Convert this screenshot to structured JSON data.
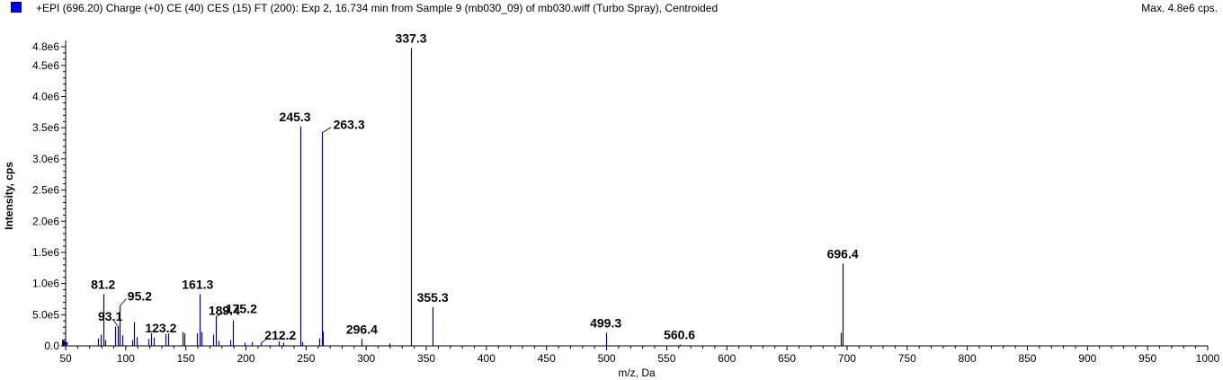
{
  "header": {
    "title": "+EPI (696.20) Charge (+0) CE (40) CES (15) FT (200): Exp 2, 16.734 min from Sample 9 (mb030_09) of mb030.wiff (Turbo Spray), Centroided",
    "max_label": "Max. 4.8e6 cps."
  },
  "colors": {
    "series": "#00008b",
    "swatch": "#0000ff",
    "axis": "#000000"
  },
  "chart_data": {
    "type": "bar",
    "title": "+EPI (696.20) Charge (+0) CE (40) CES (15) FT (200): Exp 2, 16.734 min from Sample 9 (mb030_09) of mb030.wiff (Turbo Spray), Centroided",
    "xlabel": "m/z, Da",
    "ylabel": "Intensity, cps",
    "xlim": [
      50,
      1000
    ],
    "ylim": [
      0,
      4800000.0
    ],
    "x_ticks": [
      50,
      100,
      150,
      200,
      250,
      300,
      350,
      400,
      450,
      500,
      550,
      600,
      650,
      700,
      750,
      800,
      850,
      900,
      950,
      1000
    ],
    "x_tick_labels": [
      "50",
      "100",
      "150",
      "200",
      "250",
      "300",
      "350",
      "400",
      "450",
      "500",
      "550",
      "600",
      "650",
      "700",
      "750",
      "800",
      "850",
      "900",
      "950",
      "1000"
    ],
    "y_ticks": [
      0,
      500000,
      1000000,
      1500000,
      2000000,
      2500000,
      3000000,
      3500000,
      4000000,
      4500000,
      4800000
    ],
    "y_tick_labels": [
      "0.0",
      "5.0e5",
      "1.0e6",
      "1.5e6",
      "2.0e6",
      "2.5e6",
      "3.0e6",
      "3.5e6",
      "4.0e6",
      "4.5e6",
      "4.8e6"
    ],
    "peaks": [
      {
        "mz": 51.0,
        "intensity": 60000
      },
      {
        "mz": 77.0,
        "intensity": 120000
      },
      {
        "mz": 79.0,
        "intensity": 180000
      },
      {
        "mz": 81.2,
        "intensity": 830000
      },
      {
        "mz": 83.0,
        "intensity": 90000
      },
      {
        "mz": 91.0,
        "intensity": 310000
      },
      {
        "mz": 93.1,
        "intensity": 320000
      },
      {
        "mz": 95.2,
        "intensity": 640000
      },
      {
        "mz": 97.0,
        "intensity": 170000
      },
      {
        "mz": 105.0,
        "intensity": 90000
      },
      {
        "mz": 107.1,
        "intensity": 380000
      },
      {
        "mz": 109.0,
        "intensity": 140000
      },
      {
        "mz": 119.0,
        "intensity": 110000
      },
      {
        "mz": 121.0,
        "intensity": 200000
      },
      {
        "mz": 123.2,
        "intensity": 130000
      },
      {
        "mz": 133.0,
        "intensity": 190000
      },
      {
        "mz": 135.0,
        "intensity": 200000
      },
      {
        "mz": 147.0,
        "intensity": 220000
      },
      {
        "mz": 149.0,
        "intensity": 200000
      },
      {
        "mz": 159.0,
        "intensity": 200000
      },
      {
        "mz": 161.3,
        "intensity": 830000
      },
      {
        "mz": 163.0,
        "intensity": 220000
      },
      {
        "mz": 173.0,
        "intensity": 180000
      },
      {
        "mz": 175.2,
        "intensity": 470000
      },
      {
        "mz": 177.0,
        "intensity": 80000
      },
      {
        "mz": 187.0,
        "intensity": 90000
      },
      {
        "mz": 189.4,
        "intensity": 410000
      },
      {
        "mz": 199.0,
        "intensity": 50000
      },
      {
        "mz": 205.0,
        "intensity": 60000
      },
      {
        "mz": 212.2,
        "intensity": 40000
      },
      {
        "mz": 227.0,
        "intensity": 70000
      },
      {
        "mz": 231.0,
        "intensity": 50000
      },
      {
        "mz": 245.3,
        "intensity": 3520000
      },
      {
        "mz": 247.0,
        "intensity": 60000
      },
      {
        "mz": 261.0,
        "intensity": 120000
      },
      {
        "mz": 263.3,
        "intensity": 3420000
      },
      {
        "mz": 264.3,
        "intensity": 230000
      },
      {
        "mz": 296.4,
        "intensity": 110000
      },
      {
        "mz": 319.0,
        "intensity": 40000
      },
      {
        "mz": 337.3,
        "intensity": 4780000
      },
      {
        "mz": 355.3,
        "intensity": 620000
      },
      {
        "mz": 499.3,
        "intensity": 210000
      },
      {
        "mz": 560.6,
        "intensity": 20000
      },
      {
        "mz": 695.0,
        "intensity": 210000
      },
      {
        "mz": 696.4,
        "intensity": 1320000
      }
    ],
    "annotations": [
      {
        "text": "81.2",
        "mz": 81.2,
        "intensity": 830000
      },
      {
        "text": "93.1",
        "mz": 93.1,
        "intensity": 320000
      },
      {
        "text": "95.2",
        "mz": 95.2,
        "intensity": 640000
      },
      {
        "text": "123.2",
        "mz": 123.2,
        "intensity": 130000
      },
      {
        "text": "161.3",
        "mz": 161.3,
        "intensity": 830000
      },
      {
        "text": "189.4",
        "mz": 189.4,
        "intensity": 410000
      },
      {
        "text": "175.2",
        "mz": 175.2,
        "intensity": 470000
      },
      {
        "text": "212.2",
        "mz": 212.2,
        "intensity": 40000
      },
      {
        "text": "245.3",
        "mz": 245.3,
        "intensity": 3520000
      },
      {
        "text": "263.3",
        "mz": 263.3,
        "intensity": 3420000
      },
      {
        "text": "296.4",
        "mz": 296.4,
        "intensity": 110000
      },
      {
        "text": "337.3",
        "mz": 337.3,
        "intensity": 4780000
      },
      {
        "text": "355.3",
        "mz": 355.3,
        "intensity": 620000
      },
      {
        "text": "499.3",
        "mz": 499.3,
        "intensity": 210000
      },
      {
        "text": "560.6",
        "mz": 560.6,
        "intensity": 20000
      },
      {
        "text": "696.4",
        "mz": 696.4,
        "intensity": 1320000
      }
    ]
  }
}
